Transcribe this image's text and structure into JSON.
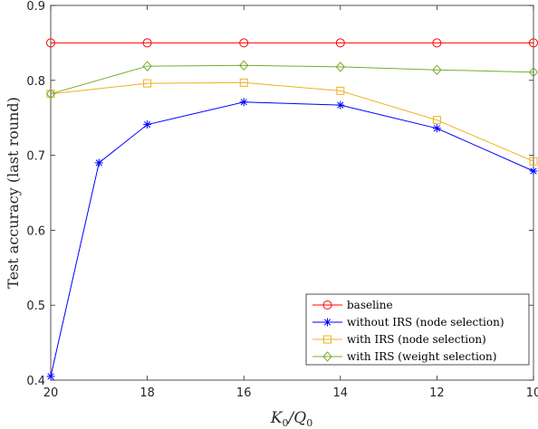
{
  "chart_data": {
    "type": "line",
    "title": "",
    "xlabel": "K_0/Q_0",
    "xlabel_main": "K",
    "xlabel_sub1": "0",
    "xlabel_slash": "/Q",
    "xlabel_sub2": "0",
    "ylabel": "Test accuracy (last round)",
    "xlim": [
      10,
      20
    ],
    "x_reversed": true,
    "ylim": [
      0.4,
      0.9
    ],
    "xticks": [
      20,
      18,
      16,
      14,
      12,
      10
    ],
    "xtick_labels": [
      "20",
      "18",
      "16",
      "14",
      "12",
      "10"
    ],
    "yticks": [
      0.4,
      0.5,
      0.6,
      0.7,
      0.8,
      0.9
    ],
    "ytick_labels": [
      "0.4",
      "0.5",
      "0.6",
      "0.7",
      "0.8",
      "0.9"
    ],
    "grid": false,
    "legend_position": "bottom-right",
    "series": [
      {
        "name": "baseline",
        "color": "#ff0000",
        "marker": "circle",
        "x": [
          20,
          18,
          16,
          14,
          12,
          10
        ],
        "values": [
          0.85,
          0.85,
          0.85,
          0.85,
          0.85,
          0.85
        ]
      },
      {
        "name": "without IRS (node selection)",
        "color": "#0000ff",
        "marker": "asterisk",
        "x": [
          20,
          19,
          18,
          16,
          14,
          12,
          10
        ],
        "values": [
          0.405,
          0.69,
          0.741,
          0.771,
          0.767,
          0.736,
          0.679
        ]
      },
      {
        "name": "with IRS (node selection)",
        "color": "#edb120",
        "marker": "square",
        "x": [
          20,
          18,
          16,
          14,
          12,
          10
        ],
        "values": [
          0.782,
          0.796,
          0.797,
          0.786,
          0.747,
          0.692
        ]
      },
      {
        "name": "with IRS (weight selection)",
        "color": "#77ac30",
        "marker": "diamond",
        "x": [
          20,
          18,
          16,
          14,
          12,
          10
        ],
        "values": [
          0.782,
          0.819,
          0.82,
          0.818,
          0.814,
          0.811
        ]
      }
    ]
  }
}
